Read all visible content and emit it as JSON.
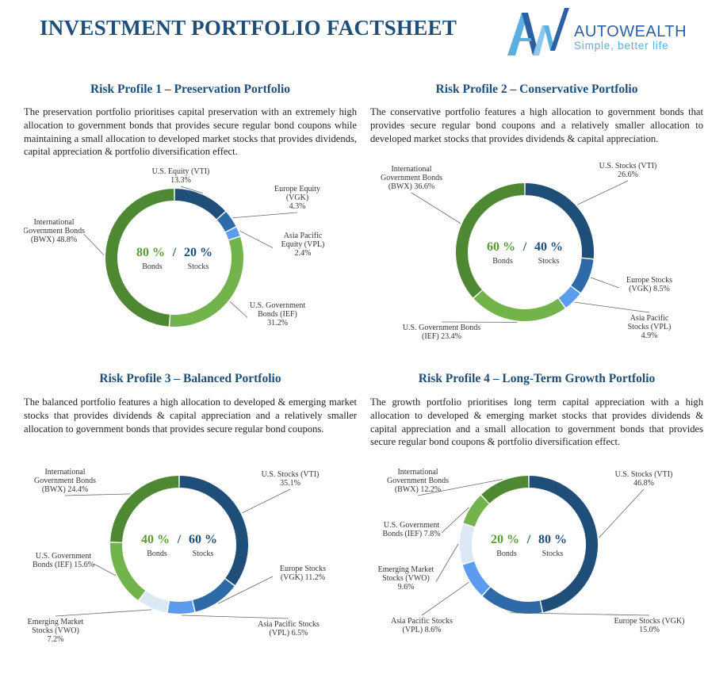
{
  "page": {
    "title": "INVESTMENT PORTFOLIO FACTSHEET"
  },
  "brand": {
    "name": "AUTOWEALTH",
    "tagline": "Simple, better life",
    "colors": {
      "dark": "#2d5fa3",
      "light": "#5aaee0"
    }
  },
  "colors": {
    "vti": "#1f4e79",
    "vgk": "#2e6aa8",
    "vpl": "#5b9cf0",
    "vwo": "#dde8f7",
    "ief": "#72b44b",
    "bwx": "#4f8833",
    "bonds_text": "#5a9a35",
    "stocks_text": "#1f4e79"
  },
  "profiles": [
    {
      "title": "Risk Profile 1 – Preservation Portfolio",
      "description": "The preservation portfolio prioritises capital preservation with an extremely high allocation to government bonds that provides secure regular bond coupons while maintaining a small allocation to developed market stocks that provides dividends, capital appreciation & portfolio diversification effect.",
      "center": {
        "bonds_pct": "80 %",
        "stocks_pct": "20 %",
        "sep": "/",
        "bonds_label": "Bonds",
        "stocks_label": "Stocks"
      },
      "chart_data": {
        "type": "pie",
        "slices": [
          {
            "key": "vti",
            "lines": [
              "U.S. Equity (VTI)",
              "13.3%"
            ],
            "value": 13.3
          },
          {
            "key": "vgk",
            "lines": [
              "Europe Equity",
              "(VGK)",
              "4.3%"
            ],
            "value": 4.3
          },
          {
            "key": "vpl",
            "lines": [
              "Asia Pacific",
              "Equity (VPL)",
              "2.4%"
            ],
            "value": 2.4
          },
          {
            "key": "ief",
            "lines": [
              "U.S. Government",
              "Bonds (IEF)",
              "31.2%"
            ],
            "value": 31.2
          },
          {
            "key": "bwx",
            "lines": [
              "International",
              "Government Bonds",
              "(BWX) 48.8%"
            ],
            "value": 48.8
          }
        ]
      }
    },
    {
      "title": "Risk Profile 2 – Conservative Portfolio",
      "description": "The conservative portfolio features a high allocation to government bonds that provides secure regular bond coupons and a relatively smaller allocation to developed market stocks that provides dividends & capital appreciation.",
      "center": {
        "bonds_pct": "60 %",
        "stocks_pct": "40 %",
        "sep": "/",
        "bonds_label": "Bonds",
        "stocks_label": "Stocks"
      },
      "chart_data": {
        "type": "pie",
        "slices": [
          {
            "key": "vti",
            "lines": [
              "U.S. Stocks (VTI)",
              "26.6%"
            ],
            "value": 26.6
          },
          {
            "key": "vgk",
            "lines": [
              "Europe Stocks",
              "(VGK) 8.5%"
            ],
            "value": 8.5
          },
          {
            "key": "vpl",
            "lines": [
              "Asia Pacific",
              "Stocks (VPL)",
              "4.9%"
            ],
            "value": 4.9
          },
          {
            "key": "ief",
            "lines": [
              "U.S. Government Bonds",
              "(IEF) 23.4%"
            ],
            "value": 23.4
          },
          {
            "key": "bwx",
            "lines": [
              "International",
              "Government Bonds",
              "(BWX) 36.6%"
            ],
            "value": 36.6
          }
        ]
      }
    },
    {
      "title": "Risk Profile 3 – Balanced Portfolio",
      "description": "The balanced portfolio features a high allocation to developed & emerging market stocks that provides dividends & capital appreciation and a relatively smaller allocation to government bonds that provides secure regular bond coupons.",
      "center": {
        "bonds_pct": "40 %",
        "stocks_pct": "60 %",
        "sep": "/",
        "bonds_label": "Bonds",
        "stocks_label": "Stocks"
      },
      "chart_data": {
        "type": "pie",
        "slices": [
          {
            "key": "vti",
            "lines": [
              "U.S. Stocks (VTI)",
              "35.1%"
            ],
            "value": 35.1
          },
          {
            "key": "vgk",
            "lines": [
              "Europe Stocks",
              "(VGK) 11.2%"
            ],
            "value": 11.2
          },
          {
            "key": "vpl",
            "lines": [
              "Asia Pacific Stocks",
              "(VPL) 6.5%"
            ],
            "value": 6.5
          },
          {
            "key": "vwo",
            "lines": [
              "Emerging Market",
              "Stocks (VWO)",
              "7.2%"
            ],
            "value": 7.2
          },
          {
            "key": "ief",
            "lines": [
              "U.S. Government",
              "Bonds (IEF) 15.6%"
            ],
            "value": 15.6
          },
          {
            "key": "bwx",
            "lines": [
              "International",
              "Government Bonds",
              "(BWX) 24.4%"
            ],
            "value": 24.4
          }
        ]
      }
    },
    {
      "title": "Risk Profile 4 – Long-Term Growth Portfolio",
      "description": "The growth portfolio prioritises long term capital appreciation with a high allocation to developed & emerging market stocks that provides dividends & capital appreciation and a small allocation to government bonds that provides secure regular bond coupons & portfolio diversification effect.",
      "center": {
        "bonds_pct": "20 %",
        "stocks_pct": "80 %",
        "sep": "/",
        "bonds_label": "Bonds",
        "stocks_label": "Stocks"
      },
      "chart_data": {
        "type": "pie",
        "slices": [
          {
            "key": "vti",
            "lines": [
              "U.S. Stocks (VTI)",
              "46.8%"
            ],
            "value": 46.8
          },
          {
            "key": "vgk",
            "lines": [
              "Europe Stocks (VGK)",
              "15.0%"
            ],
            "value": 15.0
          },
          {
            "key": "vpl",
            "lines": [
              "Asia Pacific Stocks",
              "(VPL) 8.6%"
            ],
            "value": 8.6
          },
          {
            "key": "vwo",
            "lines": [
              "Emerging Market",
              "Stocks (VWO)",
              "9.6%"
            ],
            "value": 9.6
          },
          {
            "key": "ief",
            "lines": [
              "U.S. Government",
              "Bonds (IEF) 7.8%"
            ],
            "value": 7.8
          },
          {
            "key": "bwx",
            "lines": [
              "International",
              "Government Bonds",
              "(BWX) 12.2%"
            ],
            "value": 12.2
          }
        ]
      }
    }
  ]
}
